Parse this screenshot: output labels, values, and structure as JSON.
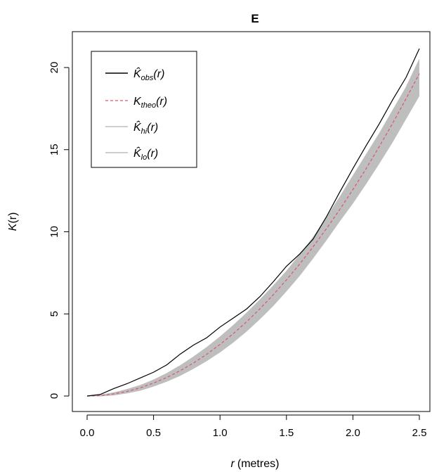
{
  "chart_data": {
    "type": "line",
    "title": "E",
    "xlabel": {
      "var": "r",
      "unit": "(metres)"
    },
    "ylabel": {
      "main": "K",
      "arg": "(r)"
    },
    "xlim": [
      0,
      2.5
    ],
    "ylim": [
      0,
      21
    ],
    "xticks": [
      "0.0",
      "0.5",
      "1.0",
      "1.5",
      "2.0",
      "2.5"
    ],
    "yticks": [
      "0",
      "5",
      "10",
      "15",
      "20"
    ],
    "legend_position": "top-left",
    "legend": [
      {
        "main": "K̂",
        "sub": "obs",
        "arg": "(r)",
        "style": "solid",
        "color": "#000000"
      },
      {
        "main": "K",
        "sub": "theo",
        "arg": "(r)",
        "style": "dashed",
        "color": "#df536b"
      },
      {
        "main": "K̂",
        "sub": "hi",
        "arg": "(r)",
        "style": "solid",
        "color": "#bebebe"
      },
      {
        "main": "K̂",
        "sub": "lo",
        "arg": "(r)",
        "style": "solid",
        "color": "#bebebe"
      }
    ],
    "series": [
      {
        "name": "obs",
        "x": [
          0,
          0.1,
          0.2,
          0.3,
          0.4,
          0.5,
          0.6,
          0.7,
          0.8,
          0.9,
          1.0,
          1.1,
          1.2,
          1.3,
          1.4,
          1.5,
          1.6,
          1.7,
          1.8,
          1.9,
          2.0,
          2.1,
          2.2,
          2.3,
          2.4,
          2.5
        ],
        "y": [
          0,
          0.1,
          0.45,
          0.75,
          1.1,
          1.45,
          1.9,
          2.55,
          3.1,
          3.55,
          4.2,
          4.75,
          5.3,
          6.05,
          6.95,
          7.9,
          8.65,
          9.55,
          10.9,
          12.4,
          13.85,
          15.25,
          16.6,
          18.05,
          19.4,
          21.15
        ]
      },
      {
        "name": "theo",
        "x": [
          0,
          0.1,
          0.2,
          0.3,
          0.4,
          0.5,
          0.6,
          0.7,
          0.8,
          0.9,
          1.0,
          1.1,
          1.2,
          1.3,
          1.4,
          1.5,
          1.6,
          1.7,
          1.8,
          1.9,
          2.0,
          2.1,
          2.2,
          2.3,
          2.4,
          2.5
        ],
        "y": [
          0,
          0.03,
          0.13,
          0.28,
          0.5,
          0.79,
          1.13,
          1.54,
          2.01,
          2.54,
          3.14,
          3.8,
          4.52,
          5.31,
          6.16,
          7.07,
          8.04,
          9.08,
          10.18,
          11.34,
          12.57,
          13.85,
          15.21,
          16.62,
          18.1,
          19.63
        ]
      },
      {
        "name": "hi",
        "x": [
          0,
          0.1,
          0.2,
          0.3,
          0.4,
          0.5,
          0.6,
          0.7,
          0.8,
          0.9,
          1.0,
          1.1,
          1.2,
          1.3,
          1.4,
          1.5,
          1.6,
          1.7,
          1.8,
          1.9,
          2.0,
          2.1,
          2.2,
          2.3,
          2.4,
          2.5
        ],
        "y": [
          0,
          0.06,
          0.2,
          0.4,
          0.65,
          0.98,
          1.38,
          1.85,
          2.38,
          2.96,
          3.6,
          4.3,
          5.05,
          5.85,
          6.7,
          7.6,
          8.6,
          9.65,
          10.85,
          12.1,
          13.4,
          14.7,
          16.0,
          17.4,
          18.8,
          20.5
        ]
      },
      {
        "name": "lo",
        "x": [
          0,
          0.1,
          0.2,
          0.3,
          0.4,
          0.5,
          0.6,
          0.7,
          0.8,
          0.9,
          1.0,
          1.1,
          1.2,
          1.3,
          1.4,
          1.5,
          1.6,
          1.7,
          1.8,
          1.9,
          2.0,
          2.1,
          2.2,
          2.3,
          2.4,
          2.5
        ],
        "y": [
          0,
          0.0,
          0.06,
          0.18,
          0.35,
          0.6,
          0.9,
          1.25,
          1.68,
          2.15,
          2.68,
          3.28,
          3.95,
          4.7,
          5.5,
          6.4,
          7.35,
          8.4,
          9.5,
          10.65,
          11.75,
          12.95,
          14.2,
          15.5,
          16.9,
          18.3
        ]
      }
    ]
  }
}
